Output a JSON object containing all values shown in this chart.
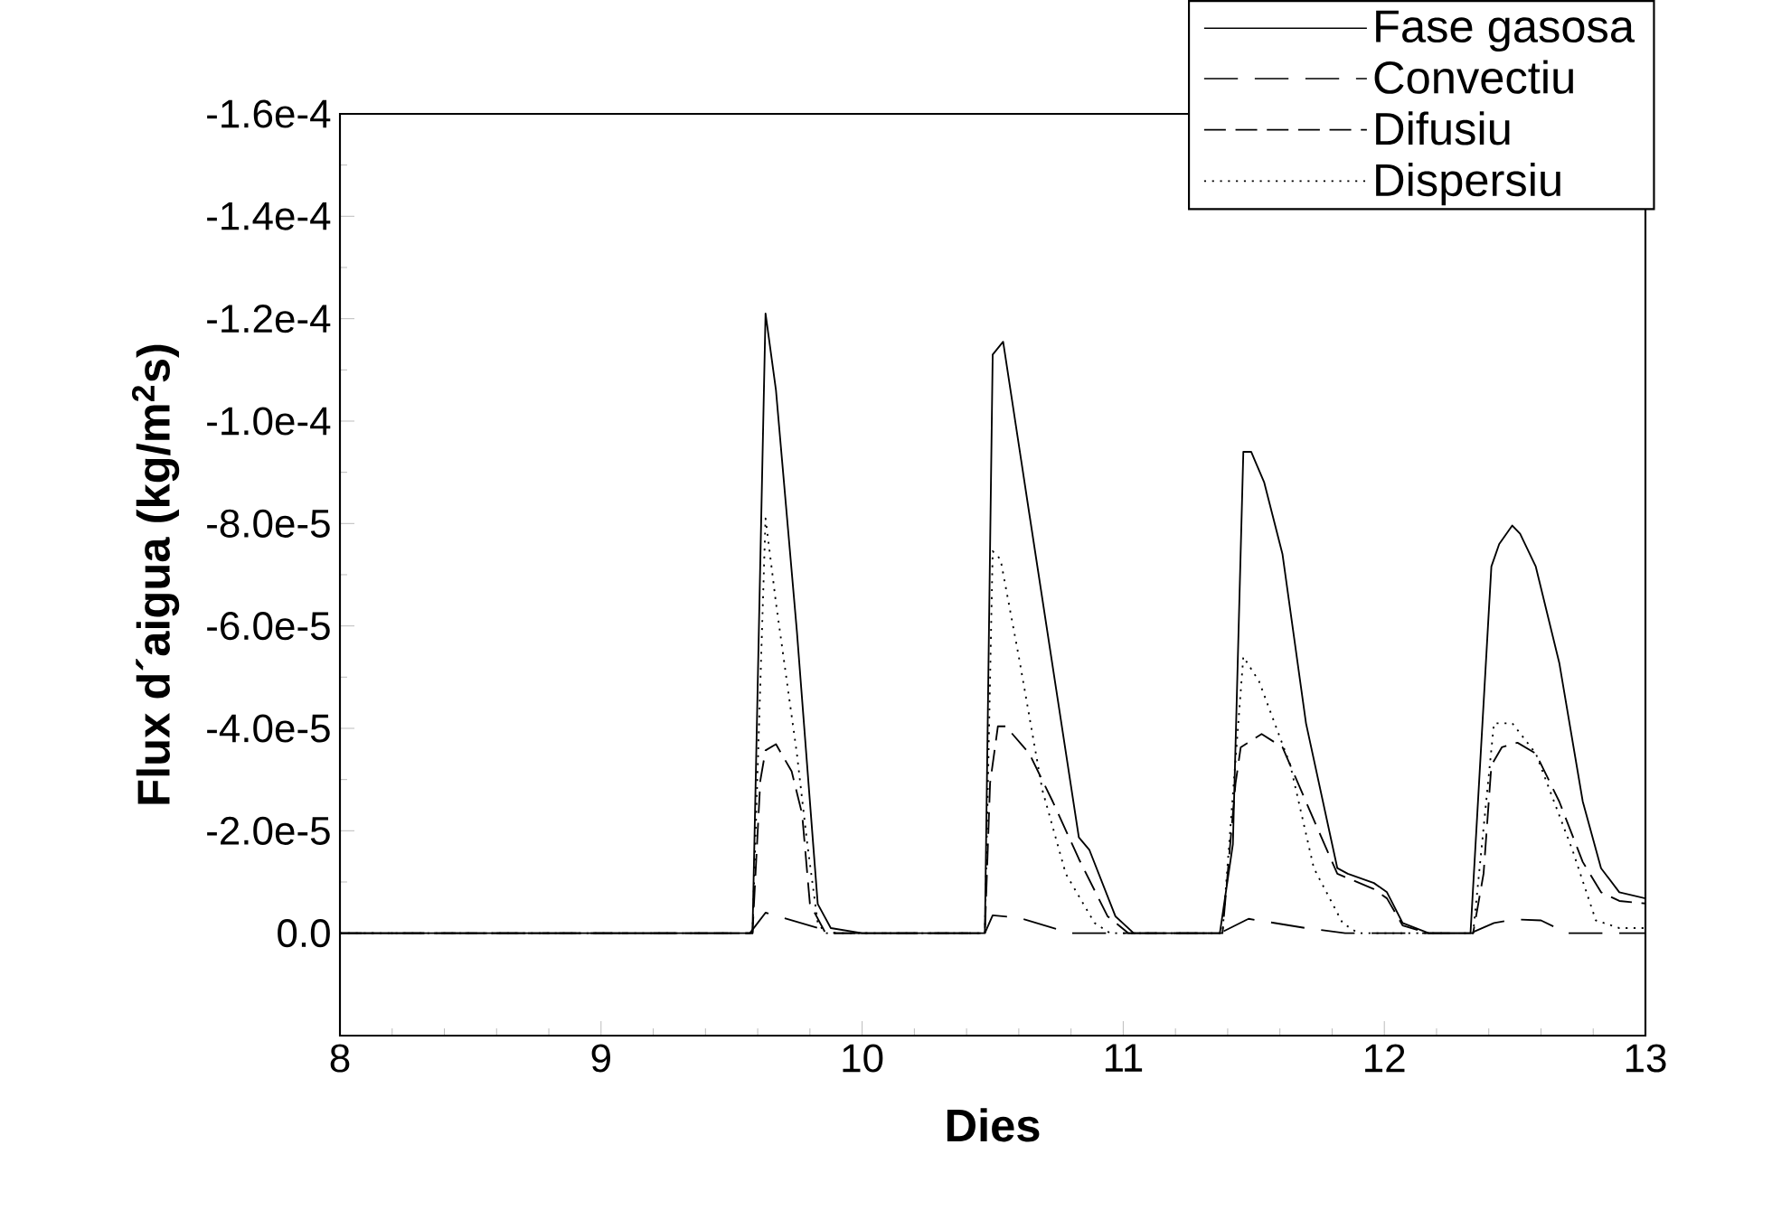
{
  "chart_data": {
    "type": "line",
    "xlabel": "Dies",
    "ylabel": "Flux d´aigua (kg/m$^{2}$s)",
    "xlim": [
      8,
      13
    ],
    "xticks": [
      8,
      9,
      10,
      11,
      12,
      13
    ],
    "ylim": [
      2e-05,
      -0.00016
    ],
    "yticks": [
      {
        "value": 0,
        "label": "0.0"
      },
      {
        "value": -2e-05,
        "label": "-2.0e-5"
      },
      {
        "value": -4e-05,
        "label": "-4.0e-5"
      },
      {
        "value": -6e-05,
        "label": "-6.0e-5"
      },
      {
        "value": -8e-05,
        "label": "-8.0e-5"
      },
      {
        "value": -0.0001,
        "label": "-1.0e-4"
      },
      {
        "value": -0.00012,
        "label": "-1.2e-4"
      },
      {
        "value": -0.00014,
        "label": "-1.4e-4"
      },
      {
        "value": -0.00016,
        "label": "-1.6e-4"
      }
    ],
    "legend": "top right",
    "grid": false,
    "marker": "none",
    "series": [
      {
        "name": "Fase gasosa",
        "color": "#000000",
        "line_style": "solid",
        "x": [
          8,
          9.55,
          9.58,
          9.63,
          9.67,
          9.75,
          9.83,
          9.88,
          10.0,
          10.47,
          10.5,
          10.54,
          10.64,
          10.83,
          10.87,
          10.97,
          11.04,
          11.37,
          11.42,
          11.46,
          11.49,
          11.54,
          11.61,
          11.7,
          11.82,
          11.86,
          11.96,
          12.01,
          12.07,
          12.17,
          12.33,
          12.41,
          12.44,
          12.49,
          12.52,
          12.58,
          12.67,
          12.76,
          12.83,
          12.9,
          13.0
        ],
        "values": [
          0,
          0,
          0,
          -0.000121,
          -0.000106,
          -5.9e-05,
          -5.7e-06,
          -1e-06,
          0,
          0,
          -0.000113,
          -0.0001155,
          -8.2e-05,
          -1.87e-05,
          -1.63e-05,
          -3.3e-06,
          0,
          0,
          -1.74e-05,
          -9.4e-05,
          -9.4e-05,
          -8.8e-05,
          -7.4e-05,
          -4.1e-05,
          -1.27e-05,
          -1.16e-05,
          -9.8e-06,
          -8e-06,
          -2e-06,
          0,
          0,
          -7.16e-05,
          -7.6e-05,
          -7.96e-05,
          -7.8e-05,
          -7.16e-05,
          -5.28e-05,
          -2.57e-05,
          -1.27e-05,
          -8e-06,
          -6.8e-06
        ]
      },
      {
        "name": "Convectiu",
        "color": "#000000",
        "line_style": "dashed",
        "x": [
          8,
          9.57,
          9.63,
          9.9,
          10.47,
          10.5,
          10.6,
          10.8,
          11.37,
          11.48,
          11.7,
          11.85,
          12.33,
          12.42,
          12.5,
          12.6,
          12.7,
          13.0
        ],
        "values": [
          0,
          0,
          -4e-06,
          0,
          0,
          -3.5e-06,
          -3e-06,
          0,
          0,
          -2.8e-06,
          -1e-06,
          0,
          0,
          -2e-06,
          -2.7e-06,
          -2.5e-06,
          0,
          0
        ]
      },
      {
        "name": "Difusiu",
        "color": "#000000",
        "line_style": "dashed",
        "x": [
          8,
          9.58,
          9.61,
          9.63,
          9.67,
          9.73,
          9.77,
          9.8,
          9.86,
          10.47,
          10.49,
          10.52,
          10.55,
          10.64,
          10.73,
          10.83,
          10.94,
          11.02,
          11.38,
          11.43,
          11.45,
          11.53,
          11.61,
          11.72,
          11.82,
          11.96,
          12.01,
          12.07,
          12.17,
          12.34,
          12.38,
          12.41,
          12.45,
          12.51,
          12.58,
          12.67,
          12.76,
          12.83,
          12.9,
          13.0
        ],
        "values": [
          0,
          0,
          -2.98e-05,
          -3.57e-05,
          -3.69e-05,
          -3.16e-05,
          -2.33e-05,
          -5.7e-06,
          0,
          0,
          -2.93e-05,
          -4.04e-05,
          -4.04e-05,
          -3.51e-05,
          -2.57e-05,
          -1.45e-05,
          -3.3e-06,
          0,
          0,
          -2.92e-05,
          -3.63e-05,
          -3.89e-05,
          -3.63e-05,
          -2.33e-05,
          -1.16e-05,
          -8.6e-06,
          -6.8e-06,
          -1.5e-06,
          0,
          0,
          -1.16e-05,
          -3.28e-05,
          -3.63e-05,
          -3.72e-05,
          -3.51e-05,
          -2.57e-05,
          -1.39e-05,
          -8e-06,
          -6.3e-06,
          -5.8e-06
        ]
      },
      {
        "name": "Dispersiu",
        "color": "#000000",
        "line_style": "dotted",
        "x": [
          8,
          9.58,
          9.63,
          9.67,
          9.75,
          9.79,
          9.83,
          9.86,
          10.47,
          10.5,
          10.53,
          10.6,
          10.69,
          10.78,
          10.89,
          10.95,
          11.38,
          11.46,
          11.52,
          11.64,
          11.73,
          11.84,
          11.9,
          12.34,
          12.42,
          12.49,
          12.58,
          12.72,
          12.81,
          12.9,
          13.0
        ],
        "values": [
          0,
          0,
          -8.1e-05,
          -6.45e-05,
          -3.51e-05,
          -1.74e-05,
          -2e-06,
          0,
          0,
          -7.46e-05,
          -7.3e-05,
          -5.4e-05,
          -2.8e-05,
          -1.16e-05,
          -2e-06,
          0,
          0,
          -5.4e-05,
          -4.92e-05,
          -3.28e-05,
          -1.27e-05,
          -2e-06,
          0,
          0,
          -4.1e-05,
          -4.1e-05,
          -3.51e-05,
          -1.63e-05,
          -2.5e-06,
          -1e-06,
          -1e-06
        ]
      }
    ]
  }
}
